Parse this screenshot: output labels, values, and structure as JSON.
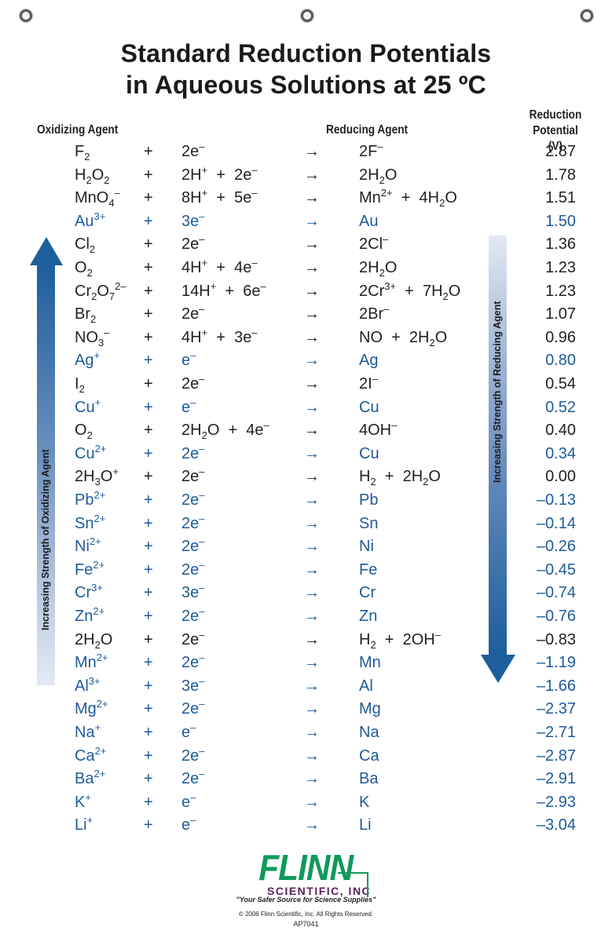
{
  "title": {
    "line1": "Standard Reduction Potentials",
    "line2": "in Aqueous Solutions at 25 ºC"
  },
  "headers": {
    "oxidizing_agent": "Oxidizing Agent",
    "reducing_agent": "Reducing Agent",
    "potential_line1": "Reduction",
    "potential_line2": "Potential (V)"
  },
  "arrows": {
    "left_label": "Increasing Strength of Oxidizing Agent",
    "right_label": "Increasing Strength of Reducing Agent",
    "color": "#1d5e9c"
  },
  "colors": {
    "black_text": "#231f20",
    "metal_blue": "#1f5a9a",
    "logo_green": "#0f9a5a",
    "logo_purple": "#5a1f5c"
  },
  "symbols": {
    "plus": "+",
    "arrow": "→"
  },
  "reactions": [
    {
      "ox": "F<sub>2</sub>",
      "e": "2e<sup>–</sup>",
      "red": "2F<sup>–</sup>",
      "v": "2.87",
      "blue": false
    },
    {
      "ox": "H<sub>2</sub>O<sub>2</sub>",
      "e": "2H<sup>+</sup> &nbsp;+ &nbsp;2e<sup>–</sup>",
      "red": "2H<sub>2</sub>O",
      "v": "1.78",
      "blue": false
    },
    {
      "ox": "MnO<sub>4</sub><sup>–</sup>",
      "e": "8H<sup>+</sup> &nbsp;+ &nbsp;5e<sup>–</sup>",
      "red": "Mn<sup>2+</sup> &nbsp;+ &nbsp;4H<sub>2</sub>O",
      "v": "1.51",
      "blue": false
    },
    {
      "ox": "Au<sup>3+</sup>",
      "e": "3e<sup>–</sup>",
      "red": "Au",
      "v": "1.50",
      "blue": true
    },
    {
      "ox": "Cl<sub>2</sub>",
      "e": "2e<sup>–</sup>",
      "red": "2Cl<sup>–</sup>",
      "v": "1.36",
      "blue": false
    },
    {
      "ox": "O<sub>2</sub>",
      "e": "4H<sup>+</sup> &nbsp;+ &nbsp;4e<sup>–</sup>",
      "red": "2H<sub>2</sub>O",
      "v": "1.23",
      "blue": false
    },
    {
      "ox": "Cr<sub>2</sub>O<sub>7</sub><sup>2–</sup>",
      "e": "14H<sup>+</sup> &nbsp;+ &nbsp;6e<sup>–</sup>",
      "red": "2Cr<sup>3+</sup> &nbsp;+ &nbsp;7H<sub>2</sub>O",
      "v": "1.23",
      "blue": false
    },
    {
      "ox": "Br<sub>2</sub>",
      "e": "2e<sup>–</sup>",
      "red": "2Br<sup>–</sup>",
      "v": "1.07",
      "blue": false
    },
    {
      "ox": "NO<sub>3</sub><sup>–</sup>",
      "e": "4H<sup>+</sup> &nbsp;+ &nbsp;3e<sup>–</sup>",
      "red": "NO &nbsp;+ &nbsp;2H<sub>2</sub>O",
      "v": "0.96",
      "blue": false
    },
    {
      "ox": "Ag<sup>+</sup>",
      "e": "e<sup>–</sup>",
      "red": "Ag",
      "v": "0.80",
      "blue": true
    },
    {
      "ox": "I<sub>2</sub>",
      "e": "2e<sup>–</sup>",
      "red": "2I<sup>–</sup>",
      "v": "0.54",
      "blue": false
    },
    {
      "ox": "Cu<sup>+</sup>",
      "e": "e<sup>–</sup>",
      "red": "Cu",
      "v": "0.52",
      "blue": true
    },
    {
      "ox": "O<sub>2</sub>",
      "e": "2H<sub>2</sub>O &nbsp;+ &nbsp;4e<sup>–</sup>",
      "red": "4OH<sup>–</sup>",
      "v": "0.40",
      "blue": false
    },
    {
      "ox": "Cu<sup>2+</sup>",
      "e": "2e<sup>–</sup>",
      "red": "Cu",
      "v": "0.34",
      "blue": true
    },
    {
      "ox": "2H<sub>3</sub>O<sup>+</sup>",
      "e": "2e<sup>–</sup>",
      "red": "H<sub>2</sub> &nbsp;+ &nbsp;2H<sub>2</sub>O",
      "v": "0.00",
      "blue": false
    },
    {
      "ox": "Pb<sup>2+</sup>",
      "e": "2e<sup>–</sup>",
      "red": "Pb",
      "v": "–0.13",
      "blue": true
    },
    {
      "ox": "Sn<sup>2+</sup>",
      "e": "2e<sup>–</sup>",
      "red": "Sn",
      "v": "–0.14",
      "blue": true
    },
    {
      "ox": "Ni<sup>2+</sup>",
      "e": "2e<sup>–</sup>",
      "red": "Ni",
      "v": "–0.26",
      "blue": true
    },
    {
      "ox": "Fe<sup>2+</sup>",
      "e": "2e<sup>–</sup>",
      "red": "Fe",
      "v": "–0.45",
      "blue": true
    },
    {
      "ox": "Cr<sup>3+</sup>",
      "e": "3e<sup>–</sup>",
      "red": "Cr",
      "v": "–0.74",
      "blue": true
    },
    {
      "ox": "Zn<sup>2+</sup>",
      "e": "2e<sup>–</sup>",
      "red": "Zn",
      "v": "–0.76",
      "blue": true
    },
    {
      "ox": "2H<sub>2</sub>O",
      "e": "2e<sup>–</sup>",
      "red": "H<sub>2</sub> &nbsp;+ &nbsp;2OH<sup>–</sup>",
      "v": "–0.83",
      "blue": false
    },
    {
      "ox": "Mn<sup>2+</sup>",
      "e": "2e<sup>–</sup>",
      "red": "Mn",
      "v": "–1.19",
      "blue": true
    },
    {
      "ox": "Al<sup>3+</sup>",
      "e": "3e<sup>–</sup>",
      "red": "Al",
      "v": "–1.66",
      "blue": true
    },
    {
      "ox": "Mg<sup>2+</sup>",
      "e": "2e<sup>–</sup>",
      "red": "Mg",
      "v": "–2.37",
      "blue": true
    },
    {
      "ox": "Na<sup>+</sup>",
      "e": "e<sup>–</sup>",
      "red": "Na",
      "v": "–2.71",
      "blue": true
    },
    {
      "ox": "Ca<sup>2+</sup>",
      "e": "2e<sup>–</sup>",
      "red": "Ca",
      "v": "–2.87",
      "blue": true
    },
    {
      "ox": "Ba<sup>2+</sup>",
      "e": "2e<sup>–</sup>",
      "red": "Ba",
      "v": "–2.91",
      "blue": true
    },
    {
      "ox": "K<sup>+</sup>",
      "e": "e<sup>–</sup>",
      "red": "K",
      "v": "–2.93",
      "blue": true
    },
    {
      "ox": "Li<sup>+</sup>",
      "e": "e<sup>–</sup>",
      "red": "Li",
      "v": "–3.04",
      "blue": true
    }
  ],
  "footer": {
    "logo_main": "FLINN",
    "logo_sub": "SCIENTIFIC, INC",
    "tagline": "\"Your Safer Source for Science Supplies\"",
    "copyright": "© 2006 Flinn Scientific, Inc. All Rights Reserved.",
    "code": "AP7041"
  }
}
